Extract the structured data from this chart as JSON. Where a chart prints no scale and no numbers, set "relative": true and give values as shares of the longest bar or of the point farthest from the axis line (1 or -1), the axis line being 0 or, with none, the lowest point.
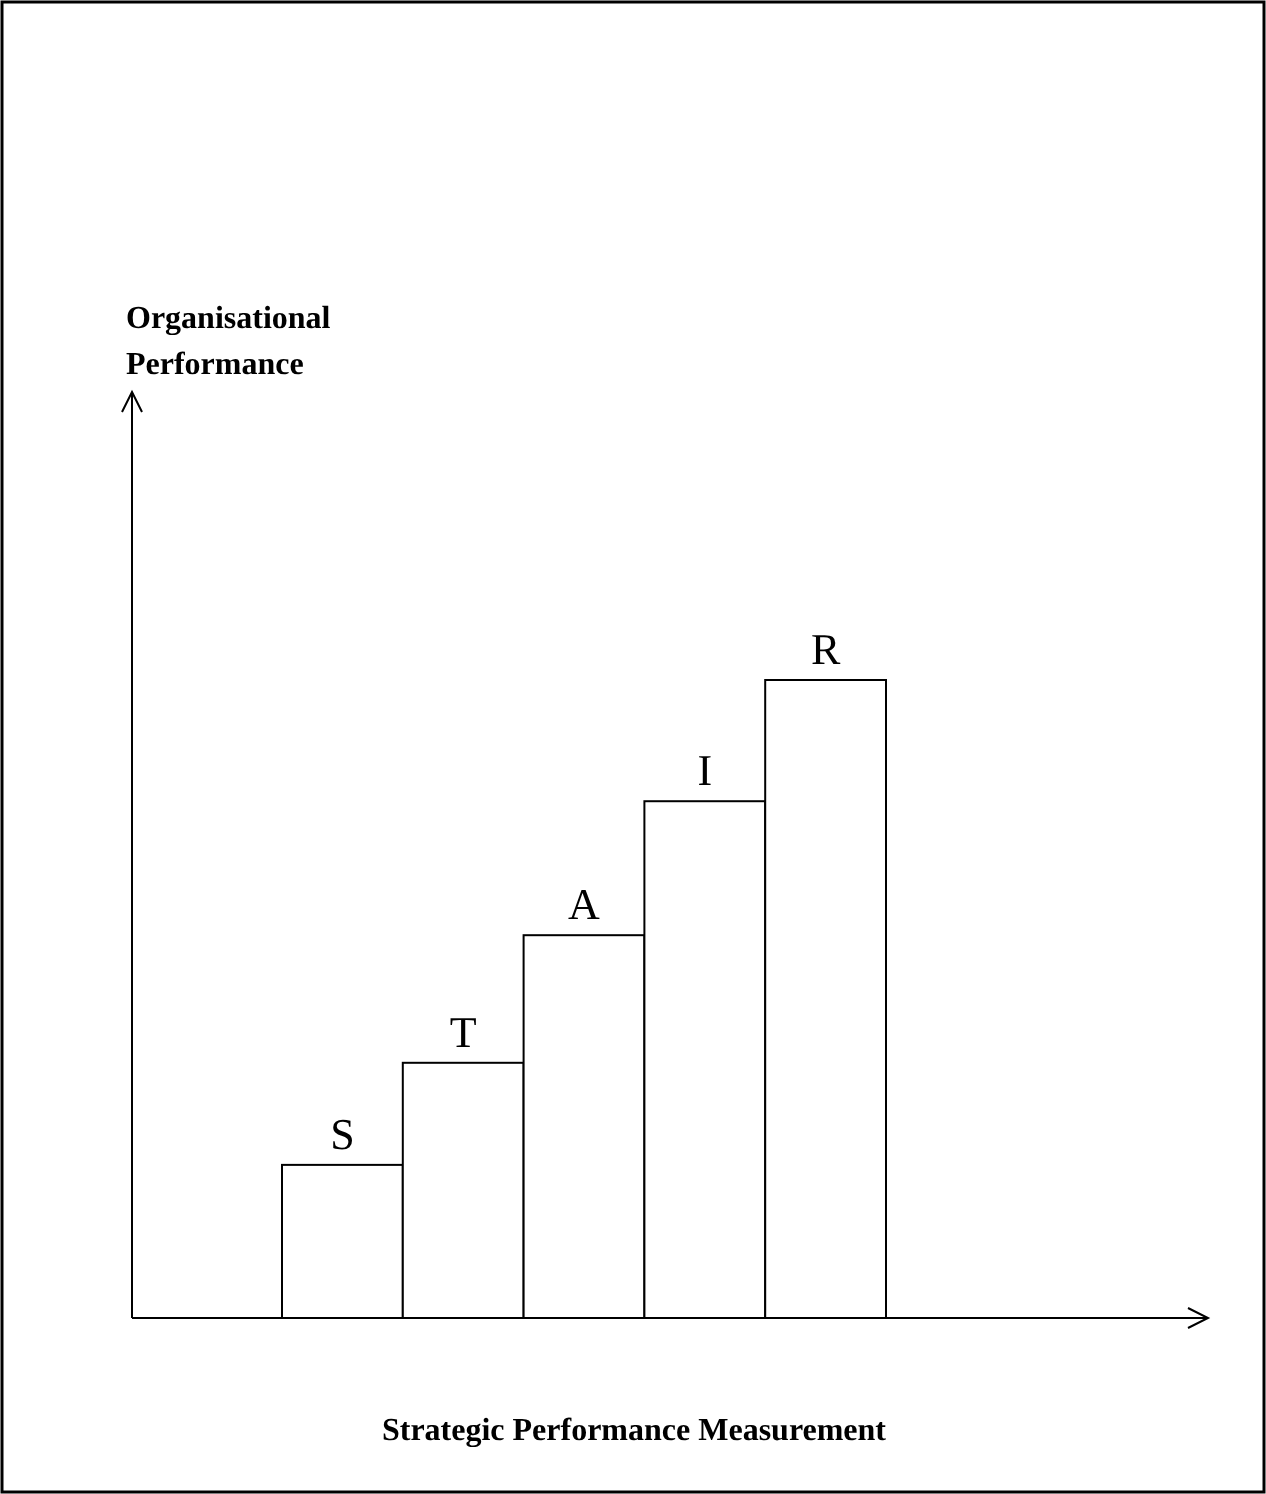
{
  "chart_data": {
    "type": "bar",
    "relative": true,
    "categories": [
      "S",
      "T",
      "A",
      "I",
      "R"
    ],
    "values": [
      0.24,
      0.4,
      0.6,
      0.81,
      1
    ],
    "color": "#ffffff",
    "xlabel": "Strategic Performance Measurement",
    "annotations": [
      "Organisational Performance"
    ]
  }
}
